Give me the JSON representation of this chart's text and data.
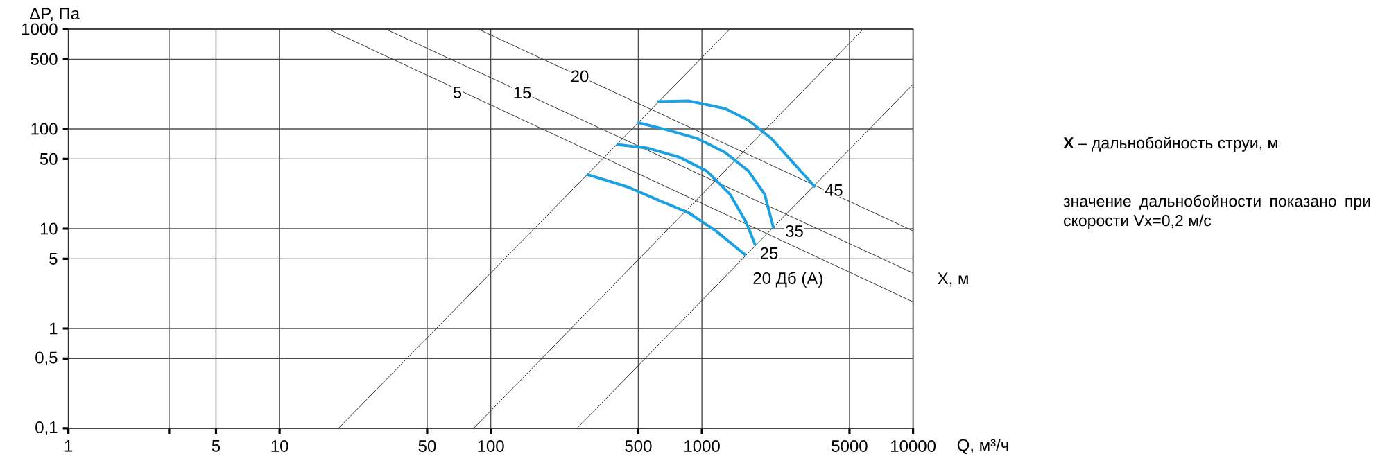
{
  "chart_data": {
    "type": "line",
    "xlabel": "Q, м³/ч",
    "ylabel": "ΔP, Па",
    "log": "xy",
    "grid": true,
    "marker": "none",
    "xlim": [
      1,
      10000
    ],
    "ylim": [
      0.1,
      1000
    ],
    "xticks": [
      1,
      {
        "value": 3,
        "label": null
      },
      5,
      10,
      50,
      100,
      500,
      1000,
      5000,
      10000
    ],
    "yticks": [
      {
        "value": 0.1,
        "label": "0,1"
      },
      {
        "value": 0.5,
        "label": "0,5"
      },
      1,
      5,
      10,
      50,
      100,
      500,
      1000
    ],
    "series": [
      {
        "color": "#333333",
        "x": [
          19,
          1357
        ],
        "values": [
          0.1,
          1000
        ]
      },
      {
        "color": "#333333",
        "x": [
          83,
          5810
        ],
        "values": [
          0.1,
          1000
        ]
      },
      {
        "color": "#333333",
        "x": [
          256,
          10000
        ],
        "values": [
          0.1,
          280
        ]
      },
      {
        "color": "#333333",
        "x": [
          17,
          10000
        ],
        "values": [
          1000,
          1.85
        ]
      },
      {
        "color": "#333333",
        "x": [
          31.8,
          10000
        ],
        "values": [
          1000,
          3.6
        ]
      },
      {
        "color": "#333333",
        "x": [
          87.2,
          10000
        ],
        "values": [
          1000,
          9.5
        ]
      },
      {
        "color": "#1ba1e2",
        "x": [
          615,
          863,
          1289,
          1660,
          2135,
          2679,
          3443
        ],
        "values": [
          188,
          191,
          160,
          122,
          80,
          46.9,
          26.1
        ]
      },
      {
        "color": "#1ba1e2",
        "x": [
          495,
          670,
          953,
          1289,
          1660,
          1982,
          2188
        ],
        "values": [
          116,
          99,
          80,
          58,
          37.9,
          22.2,
          10
        ]
      },
      {
        "color": "#1ba1e2",
        "x": [
          395,
          548,
          780,
          1054,
          1358,
          1617,
          1790
        ],
        "values": [
          69.7,
          64.5,
          52.2,
          37.9,
          22.2,
          11.7,
          6.88
        ]
      },
      {
        "color": "#1ba1e2",
        "x": [
          284,
          448,
          637,
          863,
          1167,
          1617
        ],
        "values": [
          35.2,
          26.1,
          18.9,
          14.5,
          9.47,
          5.4
        ]
      }
    ],
    "annotations": [
      {
        "text": "5",
        "x": 69.5,
        "y": 232
      },
      {
        "text": "15",
        "x": 141,
        "y": 230
      },
      {
        "text": "20",
        "x": 264,
        "y": 337
      },
      {
        "text": "45",
        "x": 4215,
        "y": 24.3
      },
      {
        "text": "35",
        "x": 2742,
        "y": 9.47
      },
      {
        "text": "25",
        "x": 2080,
        "y": 5.68
      },
      "20 Дб (А)",
      "X, м",
      "**X** – дальнобойность струи, м",
      "значение дальнобойности показано при скорости Vx=0,2 м/с"
    ]
  }
}
